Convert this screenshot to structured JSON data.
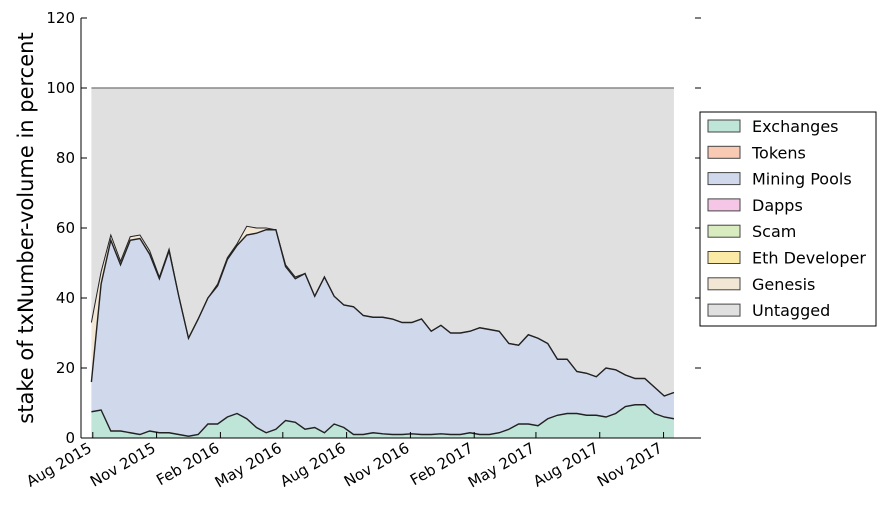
{
  "chart_data": {
    "type": "area",
    "ylabel": "stake of txNumber-volume in percent",
    "xlabel": "",
    "title": "",
    "ylim": [
      0,
      120
    ],
    "y_ticks": [
      0,
      20,
      40,
      60,
      80,
      100,
      120
    ],
    "x_range": [
      "2015-07-15",
      "2017-12-25"
    ],
    "x_ticks": [
      {
        "date": "2015-08-01",
        "label": "Aug 2015"
      },
      {
        "date": "2015-11-01",
        "label": "Nov 2015"
      },
      {
        "date": "2016-02-01",
        "label": "Feb 2016"
      },
      {
        "date": "2016-05-01",
        "label": "May 2016"
      },
      {
        "date": "2016-08-01",
        "label": "Aug 2016"
      },
      {
        "date": "2016-11-01",
        "label": "Nov 2016"
      },
      {
        "date": "2017-02-01",
        "label": "Feb 2017"
      },
      {
        "date": "2017-05-01",
        "label": "May 2017"
      },
      {
        "date": "2017-08-01",
        "label": "Aug 2017"
      },
      {
        "date": "2017-11-01",
        "label": "Nov 2017"
      }
    ],
    "grid": false,
    "stacked": true,
    "legend_position": "right",
    "x": [
      "2015-07-30",
      "2015-08-13",
      "2015-08-27",
      "2015-09-10",
      "2015-09-24",
      "2015-10-08",
      "2015-10-22",
      "2015-11-05",
      "2015-11-19",
      "2015-12-03",
      "2015-12-17",
      "2015-12-31",
      "2016-01-14",
      "2016-01-28",
      "2016-02-11",
      "2016-02-25",
      "2016-03-10",
      "2016-03-24",
      "2016-04-07",
      "2016-04-21",
      "2016-05-05",
      "2016-05-19",
      "2016-06-02",
      "2016-06-16",
      "2016-06-30",
      "2016-07-14",
      "2016-07-28",
      "2016-08-11",
      "2016-08-25",
      "2016-09-08",
      "2016-09-22",
      "2016-10-06",
      "2016-10-20",
      "2016-11-03",
      "2016-11-17",
      "2016-12-01",
      "2016-12-15",
      "2016-12-29",
      "2017-01-12",
      "2017-01-26",
      "2017-02-09",
      "2017-02-23",
      "2017-03-09",
      "2017-03-23",
      "2017-04-06",
      "2017-04-20",
      "2017-05-04",
      "2017-05-18",
      "2017-06-01",
      "2017-06-15",
      "2017-06-29",
      "2017-07-13",
      "2017-07-27",
      "2017-08-10",
      "2017-08-24",
      "2017-09-07",
      "2017-09-21",
      "2017-10-05",
      "2017-10-19",
      "2017-11-02",
      "2017-11-16"
    ],
    "series": [
      {
        "name": "Exchanges",
        "color": "#bfe5d9",
        "values": [
          7.5,
          8,
          2,
          2,
          1.5,
          1,
          2,
          1.5,
          1.5,
          1,
          0.5,
          1,
          4,
          4,
          6,
          7,
          5.5,
          3,
          1.5,
          2.5,
          5,
          4.5,
          2.5,
          3,
          1.5,
          4,
          3,
          1,
          1,
          1.5,
          1.2,
          1,
          1,
          1.2,
          1,
          1,
          1.2,
          1,
          1,
          1.5,
          1,
          1,
          1.5,
          2.5,
          4,
          4,
          3.5,
          5.5,
          6.5,
          7,
          7,
          6.5,
          6.5,
          6,
          7,
          9,
          9.5,
          9.5,
          7,
          6,
          5.5
        ]
      },
      {
        "name": "Tokens",
        "color": "#f8c9b3",
        "values": [
          0,
          0,
          0,
          0,
          0,
          0,
          0,
          0,
          0,
          0,
          0,
          0,
          0,
          0,
          0,
          0,
          0,
          0,
          0,
          0,
          0,
          0,
          0,
          0,
          0,
          0,
          0,
          0,
          0,
          0,
          0,
          0,
          0,
          0,
          0,
          0,
          0,
          0,
          0,
          0,
          0,
          0,
          0,
          0,
          0,
          0,
          0,
          0,
          0,
          0,
          0,
          0,
          0,
          0,
          0,
          0,
          0,
          0,
          0,
          0,
          0
        ]
      },
      {
        "name": "Mining Pools",
        "color": "#d0d8eb",
        "values": [
          8.5,
          36,
          54.5,
          47.5,
          55,
          56,
          50.5,
          44,
          52,
          39.5,
          28,
          33,
          36,
          39.5,
          45,
          48,
          52.5,
          55.5,
          58,
          57,
          44,
          41,
          44.5,
          37.5,
          44.5,
          36.5,
          35,
          36.5,
          34,
          33,
          33.3,
          33,
          32,
          31.8,
          33,
          29.5,
          31,
          29,
          29,
          29,
          30.5,
          30,
          29,
          24.5,
          22.5,
          25.5,
          25,
          21.5,
          16,
          15.5,
          12,
          12,
          11,
          14,
          12.5,
          9,
          7.5,
          7.5,
          7.5,
          6,
          7.5
        ]
      },
      {
        "name": "Dapps",
        "color": "#f5c6e6",
        "values": [
          0,
          0,
          0,
          0,
          0,
          0,
          0,
          0,
          0,
          0,
          0,
          0,
          0,
          0,
          0,
          0,
          0,
          0,
          0,
          0,
          0,
          0,
          0,
          0,
          0,
          0,
          0,
          0,
          0,
          0,
          0,
          0,
          0,
          0,
          0,
          0,
          0,
          0,
          0,
          0,
          0,
          0,
          0,
          0,
          0,
          0,
          0,
          0,
          0,
          0,
          0,
          0,
          0,
          0,
          0,
          0,
          0,
          0,
          0,
          0,
          0
        ]
      },
      {
        "name": "Scam",
        "color": "#d8ecbf",
        "values": [
          0,
          0,
          0,
          0,
          0,
          0,
          0,
          0,
          0,
          0,
          0,
          0,
          0,
          0,
          0,
          0,
          0,
          0,
          0,
          0,
          0,
          0,
          0,
          0,
          0,
          0,
          0,
          0,
          0,
          0,
          0,
          0,
          0,
          0,
          0,
          0,
          0,
          0,
          0,
          0,
          0,
          0,
          0,
          0,
          0,
          0,
          0,
          0,
          0,
          0,
          0,
          0,
          0,
          0,
          0,
          0,
          0,
          0,
          0,
          0,
          0
        ]
      },
      {
        "name": "Eth Developer",
        "color": "#fbeaa5",
        "values": [
          0,
          0,
          0,
          0,
          0,
          0,
          0,
          0,
          0,
          0,
          0,
          0,
          0,
          0,
          0,
          0,
          0,
          0,
          0,
          0,
          0,
          0,
          0,
          0,
          0,
          0,
          0,
          0,
          0,
          0,
          0,
          0,
          0,
          0,
          0,
          0,
          0,
          0,
          0,
          0,
          0,
          0,
          0,
          0,
          0,
          0,
          0,
          0,
          0,
          0,
          0,
          0,
          0,
          0,
          0,
          0,
          0,
          0,
          0,
          0,
          0
        ]
      },
      {
        "name": "Genesis",
        "color": "#f2e6d5",
        "values": [
          17,
          3.5,
          1.5,
          1,
          1,
          1,
          1,
          0.5,
          0.5,
          0,
          0,
          0,
          0,
          0.5,
          0.5,
          0.5,
          2.5,
          1.5,
          0.5,
          0,
          0.5,
          0.5,
          0,
          0,
          0,
          0,
          0,
          0,
          0,
          0,
          0,
          0,
          0,
          0,
          0,
          0,
          0,
          0,
          0,
          0,
          0,
          0,
          0,
          0,
          0,
          0,
          0,
          0,
          0,
          0,
          0,
          0,
          0,
          0,
          0,
          0,
          0,
          0,
          0,
          0,
          0
        ]
      },
      {
        "name": "Untagged",
        "color": "#e0e0e0",
        "values": [
          67,
          52.5,
          42,
          49.5,
          42.5,
          42,
          46.5,
          54,
          46,
          59.5,
          71.5,
          66,
          60,
          56,
          48.5,
          44.5,
          39.5,
          40,
          40,
          40.5,
          50.5,
          54,
          53,
          59.5,
          54,
          59.5,
          62,
          62.5,
          65,
          65.5,
          65.5,
          66,
          67,
          67,
          66,
          69.5,
          67.8,
          70,
          70,
          69.5,
          68.5,
          69,
          69.5,
          73,
          73.5,
          70.5,
          71.5,
          73,
          77.5,
          77.5,
          81,
          81.5,
          82.5,
          80,
          80.5,
          82,
          83,
          83,
          85.5,
          88,
          87
        ]
      }
    ]
  }
}
